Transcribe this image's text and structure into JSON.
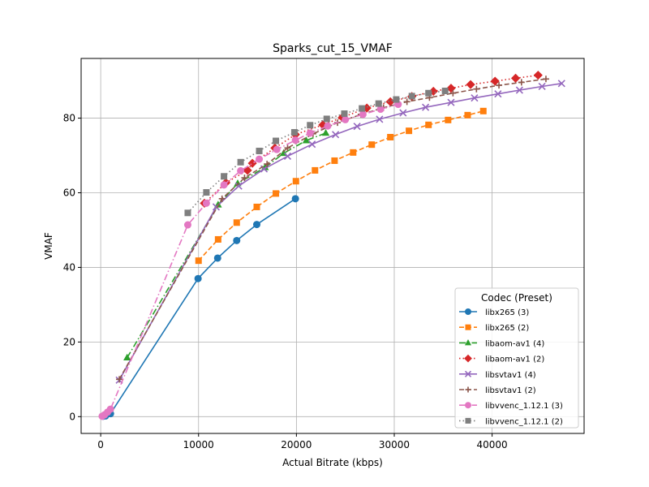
{
  "chart_data": {
    "type": "line",
    "title": "Sparks_cut_15_VMAF",
    "xlabel": "Actual Bitrate (kbps)",
    "ylabel": "VMAF",
    "xlim": [
      -2000,
      49400
    ],
    "ylim": [
      -4.5,
      96.0
    ],
    "xticks": [
      0,
      10000,
      20000,
      30000,
      40000
    ],
    "yticks": [
      0,
      20,
      40,
      60,
      80
    ],
    "xtick_labels": [
      "0",
      "10000",
      "20000",
      "30000",
      "40000"
    ],
    "ytick_labels": [
      "0",
      "20",
      "40",
      "60",
      "80"
    ],
    "grid": true,
    "legend": {
      "title": "Codec (Preset)",
      "placement": "lower-right"
    },
    "series": [
      {
        "name": "libx265 (3)",
        "color": "#1f77b4",
        "dash": "solid",
        "marker": "circle",
        "points": [
          [
            250,
            0.1
          ],
          [
            500,
            0.2
          ],
          [
            1000,
            0.8
          ],
          [
            9950,
            37.0
          ],
          [
            11950,
            42.5
          ],
          [
            13900,
            47.2
          ],
          [
            15950,
            51.5
          ],
          [
            19900,
            58.4
          ]
        ]
      },
      {
        "name": "libx265 (2)",
        "color": "#ff7f0e",
        "dash": "dashed",
        "marker": "square",
        "points": [
          [
            10000,
            41.8
          ],
          [
            12000,
            47.5
          ],
          [
            13900,
            52.0
          ],
          [
            15950,
            56.2
          ],
          [
            17900,
            59.8
          ],
          [
            19950,
            63.1
          ],
          [
            21900,
            66.0
          ],
          [
            23900,
            68.6
          ],
          [
            25800,
            70.8
          ],
          [
            27700,
            72.9
          ],
          [
            29600,
            74.9
          ],
          [
            31500,
            76.6
          ],
          [
            33500,
            78.2
          ],
          [
            35500,
            79.5
          ],
          [
            37500,
            80.8
          ],
          [
            39100,
            81.9
          ]
        ]
      },
      {
        "name": "libaom-av1 (4)",
        "color": "#2ca02c",
        "dash": "dashdot",
        "marker": "triangle",
        "points": [
          [
            2700,
            15.8
          ],
          [
            12000,
            56.8
          ],
          [
            14000,
            62.5
          ],
          [
            16800,
            66.8
          ],
          [
            18700,
            70.6
          ],
          [
            21000,
            74.0
          ],
          [
            23000,
            76.0
          ]
        ]
      },
      {
        "name": "libaom-av1 (2)",
        "color": "#d62728",
        "dash": "dotted",
        "marker": "diamond",
        "points": [
          [
            10600,
            57.2
          ],
          [
            12800,
            62.7
          ],
          [
            15000,
            66.0
          ],
          [
            15500,
            67.9
          ],
          [
            17800,
            72.0
          ],
          [
            19900,
            75.6
          ],
          [
            22700,
            78.2
          ],
          [
            24700,
            80.2
          ],
          [
            27200,
            82.7
          ],
          [
            29600,
            84.4
          ],
          [
            31800,
            85.8
          ],
          [
            34000,
            87.2
          ],
          [
            35800,
            88.0
          ],
          [
            37800,
            89.0
          ],
          [
            40300,
            89.9
          ],
          [
            42400,
            90.7
          ],
          [
            44700,
            91.5
          ]
        ]
      },
      {
        "name": "libsvtav1 (4)",
        "color": "#9467bd",
        "dash": "solid",
        "marker": "x",
        "points": [
          [
            1900,
            9.8
          ],
          [
            11800,
            56.2
          ],
          [
            14100,
            61.8
          ],
          [
            16700,
            66.4
          ],
          [
            19100,
            69.8
          ],
          [
            21600,
            73.0
          ],
          [
            24000,
            75.6
          ],
          [
            26200,
            77.8
          ],
          [
            28500,
            79.7
          ],
          [
            30900,
            81.4
          ],
          [
            33200,
            82.9
          ],
          [
            35800,
            84.2
          ],
          [
            38200,
            85.4
          ],
          [
            40600,
            86.5
          ],
          [
            42800,
            87.5
          ],
          [
            45100,
            88.5
          ],
          [
            47100,
            89.3
          ]
        ]
      },
      {
        "name": "libsvtav1 (2)",
        "color": "#8c564b",
        "dash": "dashed",
        "marker": "plus",
        "points": [
          [
            1900,
            10.0
          ],
          [
            12400,
            58.4
          ],
          [
            14700,
            64.0
          ],
          [
            17000,
            67.7
          ],
          [
            19100,
            72.0
          ],
          [
            21700,
            75.8
          ],
          [
            24200,
            78.8
          ],
          [
            26600,
            81.0
          ],
          [
            28900,
            82.8
          ],
          [
            31300,
            84.4
          ],
          [
            33600,
            85.5
          ],
          [
            36000,
            86.7
          ],
          [
            38400,
            87.8
          ],
          [
            40700,
            88.8
          ],
          [
            43000,
            89.6
          ],
          [
            45500,
            90.5
          ]
        ]
      },
      {
        "name": "libvvenc_1.12.1 (3)",
        "color": "#e377c2",
        "dash": "dashdot",
        "marker": "circle",
        "points": [
          [
            150,
            0.1
          ],
          [
            400,
            0.5
          ],
          [
            700,
            1.2
          ],
          [
            1000,
            2.0
          ],
          [
            8900,
            51.4
          ],
          [
            10800,
            57.2
          ],
          [
            12600,
            62.1
          ],
          [
            14300,
            65.9
          ],
          [
            16200,
            69.0
          ],
          [
            18000,
            71.6
          ],
          [
            19900,
            74.1
          ],
          [
            21400,
            76.0
          ],
          [
            23200,
            77.9
          ],
          [
            25000,
            79.6
          ],
          [
            26800,
            81.0
          ],
          [
            28600,
            82.4
          ],
          [
            30400,
            83.7
          ]
        ]
      },
      {
        "name": "libvvenc_1.12.1 (2)",
        "color": "#7f7f7f",
        "dash": "dotted",
        "marker": "square",
        "points": [
          [
            8900,
            54.6
          ],
          [
            10800,
            60.1
          ],
          [
            12600,
            64.4
          ],
          [
            14300,
            68.2
          ],
          [
            16200,
            71.2
          ],
          [
            17900,
            73.9
          ],
          [
            19800,
            76.2
          ],
          [
            21400,
            78.1
          ],
          [
            23100,
            79.8
          ],
          [
            24900,
            81.2
          ],
          [
            26700,
            82.6
          ],
          [
            28400,
            83.9
          ],
          [
            30200,
            85.0
          ],
          [
            31800,
            85.9
          ],
          [
            33500,
            86.7
          ],
          [
            35200,
            87.3
          ]
        ]
      }
    ]
  }
}
